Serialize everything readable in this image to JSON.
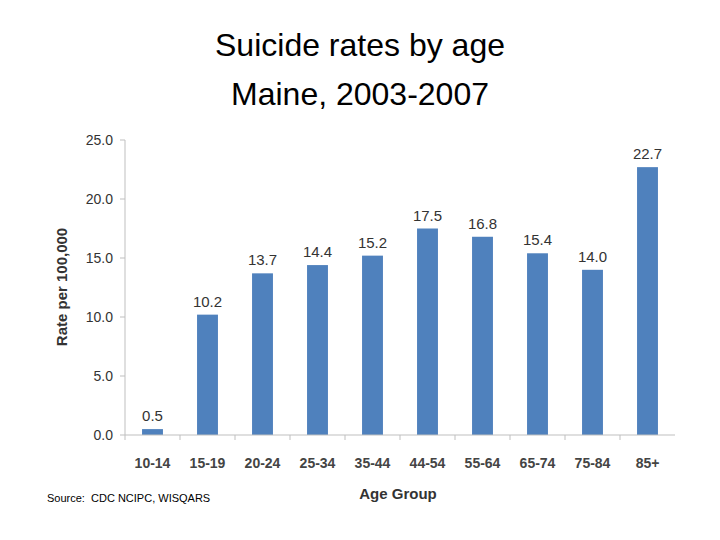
{
  "chart_data": {
    "type": "bar",
    "title": "Suicide rates by age",
    "subtitle": "Maine, 2003-2007",
    "x_label": "Age Group",
    "y_label": "Rate per 100,000",
    "annotations": [
      "Source:  CDC NCIPC, WISQARS"
    ],
    "categories": [
      "10-14",
      "15-19",
      "20-24",
      "25-34",
      "35-44",
      "44-54",
      "55-64",
      "65-74",
      "75-84",
      "85+"
    ],
    "values": [
      0.5,
      10.2,
      13.7,
      14.4,
      15.2,
      17.5,
      16.8,
      15.4,
      14.0,
      22.7
    ],
    "value_labels": [
      "0.5",
      "10.2",
      "13.7",
      "14.4",
      "15.2",
      "17.5",
      "16.8",
      "15.4",
      "14.0",
      "22.7"
    ],
    "color": "#4f81bd",
    "ylim": [
      0,
      25
    ],
    "yticks": [
      {
        "value": 0,
        "label": "0.0"
      },
      {
        "value": 5,
        "label": "5.0"
      },
      {
        "value": 10,
        "label": "10.0"
      },
      {
        "value": 15,
        "label": "15.0"
      },
      {
        "value": 20,
        "label": "20.0"
      },
      {
        "value": 25,
        "label": "25.0"
      }
    ],
    "grid": false,
    "data_labels": true
  }
}
